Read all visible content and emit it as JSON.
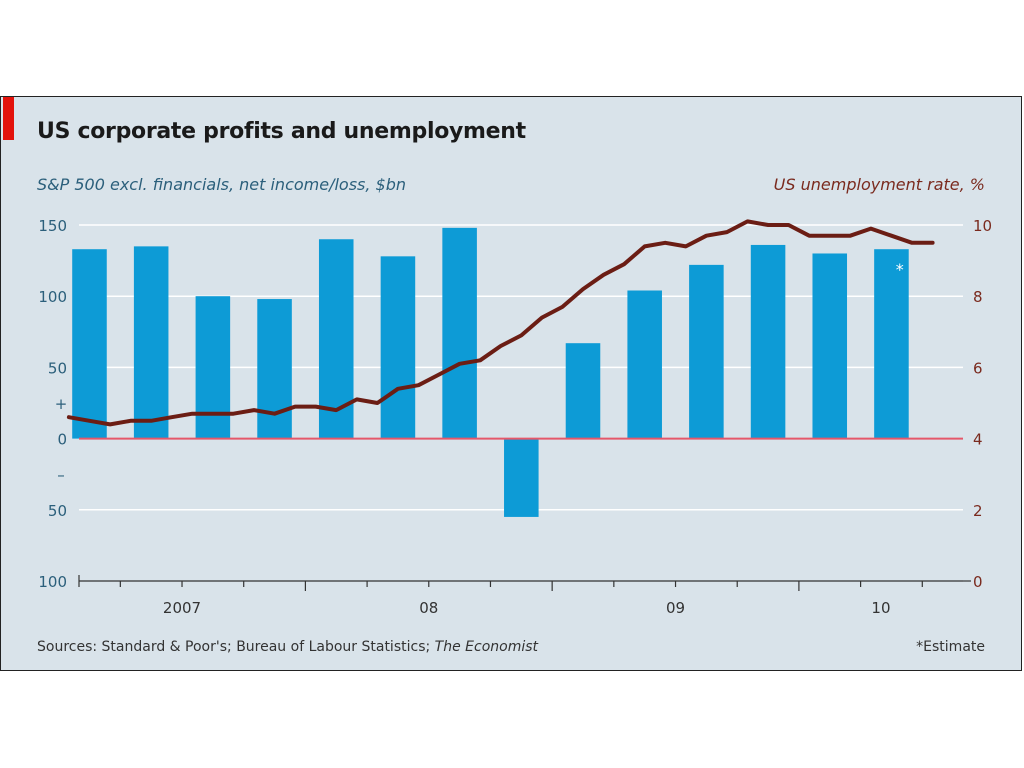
{
  "card": {
    "title": "US corporate profits and unemployment",
    "left_subtitle": "S&P 500 excl. financials, net income/loss, $bn",
    "right_subtitle": "US unemployment rate, %",
    "source_prefix": "Sources: Standard & Poor's; Bureau of Labour Statistics; ",
    "source_italic": "The Economist",
    "note": "*Estimate",
    "estimate_marker": "*",
    "plus_sign": "+",
    "minus_sign": "–"
  },
  "colors": {
    "background": "#d9e3ea",
    "bars": "#0d9bd6",
    "line": "#6b1d14",
    "zero_line": "#e5576a",
    "grid": "#ffffff",
    "accent_red": "#e3120b"
  },
  "chart_data": {
    "type": "bar+line",
    "x_tick_labels": [
      "2007",
      "08",
      "09",
      "10"
    ],
    "left_axis": {
      "label": "S&P 500 excl. financials, net income/loss, $bn",
      "range": [
        -100,
        150
      ],
      "ticks": [
        150,
        100,
        50,
        0,
        -50,
        -100
      ],
      "tick_labels": [
        "150",
        "100",
        "50",
        "0",
        "50",
        "100"
      ]
    },
    "right_axis": {
      "label": "US unemployment rate, %",
      "range": [
        0,
        10
      ],
      "ticks": [
        10,
        8,
        6,
        4,
        2,
        0
      ],
      "tick_labels": [
        "10",
        "8",
        "6",
        "4",
        "2",
        "0"
      ]
    },
    "bars": {
      "name": "S&P 500 excl. financials, net income/loss",
      "unit": "$bn",
      "frequency": "quarterly",
      "values": [
        133,
        135,
        100,
        98,
        140,
        128,
        148,
        -55,
        67,
        104,
        122,
        136,
        130,
        133
      ],
      "estimate_index": 13
    },
    "line": {
      "name": "US unemployment rate",
      "unit": "%",
      "frequency": "monthly",
      "values": [
        4.6,
        4.5,
        4.4,
        4.5,
        4.5,
        4.6,
        4.7,
        4.7,
        4.7,
        4.8,
        4.7,
        4.9,
        4.9,
        4.8,
        5.1,
        5.0,
        5.4,
        5.5,
        5.8,
        6.1,
        6.2,
        6.6,
        6.9,
        7.4,
        7.7,
        8.2,
        8.6,
        8.9,
        9.4,
        9.5,
        9.4,
        9.7,
        9.8,
        10.1,
        10.0,
        10.0,
        9.7,
        9.7,
        9.7,
        9.9,
        9.7,
        9.5,
        9.5
      ]
    },
    "grid": true
  }
}
